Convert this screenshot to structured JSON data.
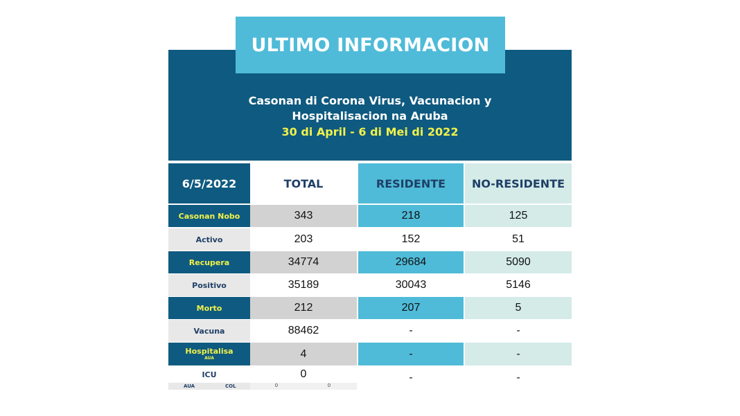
{
  "title": "ULTIMO INFORMACION",
  "subtitle_line1": "Casonan di Corona Virus, Vacunacion y",
  "subtitle_line2": "Hospitalisacion na Aruba",
  "date_range": "30 di April - 6 di Mei di 2022",
  "table": {
    "date": "6/5/2022",
    "columns": [
      "TOTAL",
      "RESIDENTE",
      "NO-RESIDENTE"
    ],
    "rows": [
      {
        "label": "Casonan Nobo",
        "total": "343",
        "residente": "218",
        "no_residente": "125"
      },
      {
        "label": "Activo",
        "total": "203",
        "residente": "152",
        "no_residente": "51"
      },
      {
        "label": "Recupera",
        "total": "34774",
        "residente": "29684",
        "no_residente": "5090"
      },
      {
        "label": "Positivo",
        "total": "35189",
        "residente": "30043",
        "no_residente": "5146"
      },
      {
        "label": "Morto",
        "total": "212",
        "residente": "207",
        "no_residente": "5"
      },
      {
        "label": "Vacuna",
        "total": "88462",
        "residente": "-",
        "no_residente": "-"
      },
      {
        "label": "Hospitalisa",
        "sublabel": "AUA",
        "total": "4",
        "residente": "-",
        "no_residente": "-"
      },
      {
        "label": "ICU",
        "total": "0",
        "residente": "-",
        "no_residente": "-"
      }
    ],
    "icu_sub": {
      "aua_label": "AUA",
      "col_label": "COL",
      "aua_value": "0",
      "col_value": "0"
    }
  },
  "colors": {
    "navy": "#0f5a80",
    "cyan": "#4fbbd8",
    "mint": "#d4ebe8",
    "gray": "#d2d2d2",
    "yellow": "#f2f24a"
  }
}
